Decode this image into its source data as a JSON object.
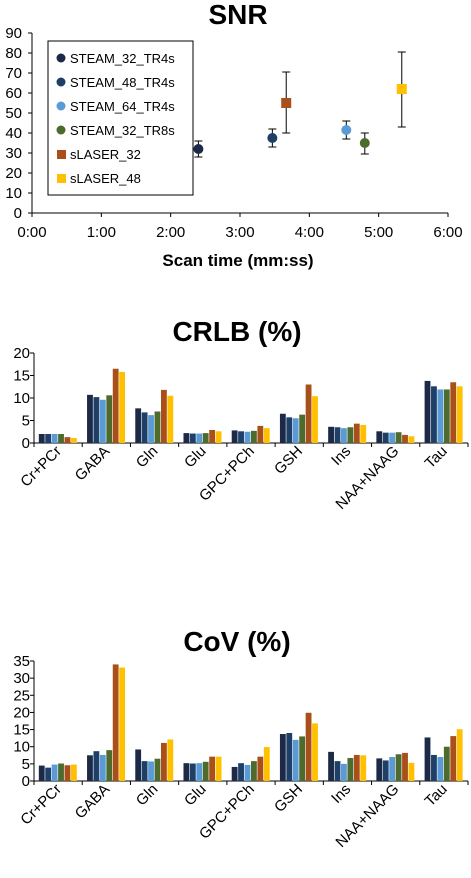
{
  "colors": {
    "STEAM_32_TR4s": "#1c2a48",
    "STEAM_48_TR4s": "#1e3f68",
    "STEAM_64_TR4s": "#5b9bd5",
    "STEAM_32_TR8s": "#4e6b2e",
    "sLASER_32": "#a9501a",
    "sLASER_48": "#ffc000"
  },
  "chart_data": [
    {
      "type": "scatter",
      "title": "SNR",
      "xlabel": "Scan time (mm:ss)",
      "ylabel": "",
      "xlim": [
        0,
        360
      ],
      "ylim": [
        0,
        90
      ],
      "x_ticks": [
        {
          "value": 0,
          "label": "0:00"
        },
        {
          "value": 60,
          "label": "1:00"
        },
        {
          "value": 120,
          "label": "2:00"
        },
        {
          "value": 180,
          "label": "3:00"
        },
        {
          "value": 240,
          "label": "4:00"
        },
        {
          "value": 300,
          "label": "5:00"
        },
        {
          "value": 360,
          "label": "6:00"
        }
      ],
      "y_ticks": [
        0,
        10,
        20,
        30,
        40,
        50,
        60,
        70,
        80,
        90
      ],
      "legend_position": "top-left",
      "series": [
        {
          "name": "STEAM_32_TR4s",
          "marker": "circle",
          "x": "2:24",
          "x_seconds": 144,
          "y": 32,
          "err_low": 28,
          "err_high": 36
        },
        {
          "name": "STEAM_48_TR4s",
          "marker": "circle",
          "x": "3:28",
          "x_seconds": 208,
          "y": 37.5,
          "err_low": 33,
          "err_high": 42
        },
        {
          "name": "STEAM_64_TR4s",
          "marker": "circle",
          "x": "4:32",
          "x_seconds": 272,
          "y": 41.5,
          "err_low": 37,
          "err_high": 46
        },
        {
          "name": "STEAM_32_TR8s",
          "marker": "circle",
          "x": "4:48",
          "x_seconds": 288,
          "y": 35,
          "err_low": 29.5,
          "err_high": 40
        },
        {
          "name": "sLASER_32",
          "marker": "square",
          "x": "3:40",
          "x_seconds": 220,
          "y": 55,
          "err_low": 40,
          "err_high": 70.5
        },
        {
          "name": "sLASER_48",
          "marker": "square",
          "x": "5:20",
          "x_seconds": 320,
          "y": 62,
          "err_low": 43,
          "err_high": 80.5
        }
      ]
    },
    {
      "type": "bar",
      "title": "CRLB (%)",
      "ylim": [
        0,
        20
      ],
      "y_ticks": [
        0,
        5,
        10,
        15,
        20
      ],
      "categories": [
        "Cr+PCr",
        "GABA",
        "Gln",
        "Glu",
        "GPC+PCh",
        "GSH",
        "Ins",
        "NAA+NAAG",
        "Tau"
      ],
      "series": [
        {
          "name": "STEAM_32_TR4s",
          "values": [
            2.0,
            10.7,
            7.7,
            2.2,
            2.8,
            6.5,
            3.6,
            2.6,
            13.8
          ]
        },
        {
          "name": "STEAM_48_TR4s",
          "values": [
            2.0,
            10.2,
            6.8,
            2.1,
            2.6,
            5.7,
            3.5,
            2.3,
            12.6
          ]
        },
        {
          "name": "STEAM_64_TR4s",
          "values": [
            2.0,
            9.6,
            6.2,
            2.1,
            2.5,
            5.5,
            3.3,
            2.3,
            11.9
          ]
        },
        {
          "name": "STEAM_32_TR8s",
          "values": [
            2.0,
            10.6,
            7.0,
            2.2,
            2.7,
            6.3,
            3.5,
            2.4,
            11.9
          ]
        },
        {
          "name": "sLASER_32",
          "values": [
            1.3,
            16.5,
            11.8,
            2.9,
            3.8,
            13.0,
            4.3,
            1.8,
            13.5
          ]
        },
        {
          "name": "sLASER_48",
          "values": [
            1.1,
            15.8,
            10.5,
            2.6,
            3.3,
            10.4,
            4.0,
            1.5,
            12.6
          ]
        }
      ]
    },
    {
      "type": "bar",
      "title": "CoV (%)",
      "ylim": [
        0,
        35
      ],
      "y_ticks": [
        0,
        5,
        10,
        15,
        20,
        25,
        30,
        35
      ],
      "categories": [
        "Cr+PCr",
        "GABA",
        "Gln",
        "Glu",
        "GPC+PCh",
        "GSH",
        "Ins",
        "NAA+NAAG",
        "Tau"
      ],
      "series": [
        {
          "name": "STEAM_32_TR4s",
          "values": [
            4.5,
            7.5,
            9.2,
            5.2,
            4.1,
            13.7,
            8.5,
            6.6,
            12.7
          ]
        },
        {
          "name": "STEAM_48_TR4s",
          "values": [
            3.9,
            8.7,
            5.8,
            5.1,
            5.2,
            14.0,
            5.8,
            6.0,
            7.6
          ]
        },
        {
          "name": "STEAM_64_TR4s",
          "values": [
            4.8,
            7.6,
            5.7,
            5.2,
            4.7,
            12.0,
            5.0,
            7.0,
            7.0
          ]
        },
        {
          "name": "STEAM_32_TR8s",
          "values": [
            5.1,
            9.0,
            6.5,
            5.6,
            5.8,
            13.0,
            6.7,
            7.8,
            10.0
          ]
        },
        {
          "name": "sLASER_32",
          "values": [
            4.6,
            34.0,
            11.1,
            7.1,
            7.1,
            19.9,
            7.6,
            8.2,
            13.1
          ]
        },
        {
          "name": "sLASER_48",
          "values": [
            4.8,
            33.1,
            12.1,
            7.1,
            9.9,
            16.8,
            7.5,
            5.3,
            15.1
          ]
        }
      ]
    }
  ]
}
